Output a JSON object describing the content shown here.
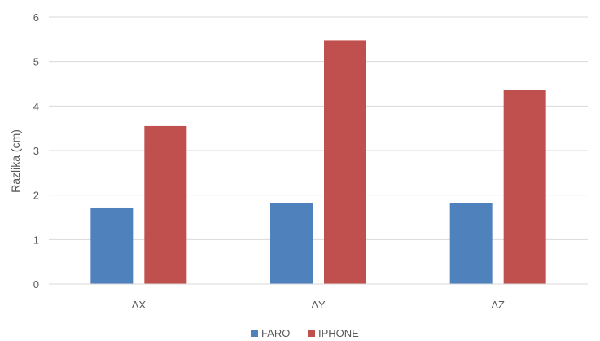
{
  "chart_data": {
    "type": "bar",
    "title": "",
    "xlabel": "",
    "ylabel": "Razlika (cm)",
    "categories": [
      "ΔX",
      "ΔY",
      "ΔZ"
    ],
    "series": [
      {
        "name": "FARO",
        "color": "#4f81bd",
        "values": [
          1.72,
          1.82,
          1.82
        ]
      },
      {
        "name": "IPHONE",
        "color": "#c0504d",
        "values": [
          3.55,
          5.48,
          4.37
        ]
      }
    ],
    "yticks": [
      0,
      1,
      2,
      3,
      4,
      5,
      6
    ],
    "ylim": [
      0,
      6
    ],
    "grid": true,
    "legend_position": "bottom",
    "gridline_color": "#d9d9d9"
  }
}
